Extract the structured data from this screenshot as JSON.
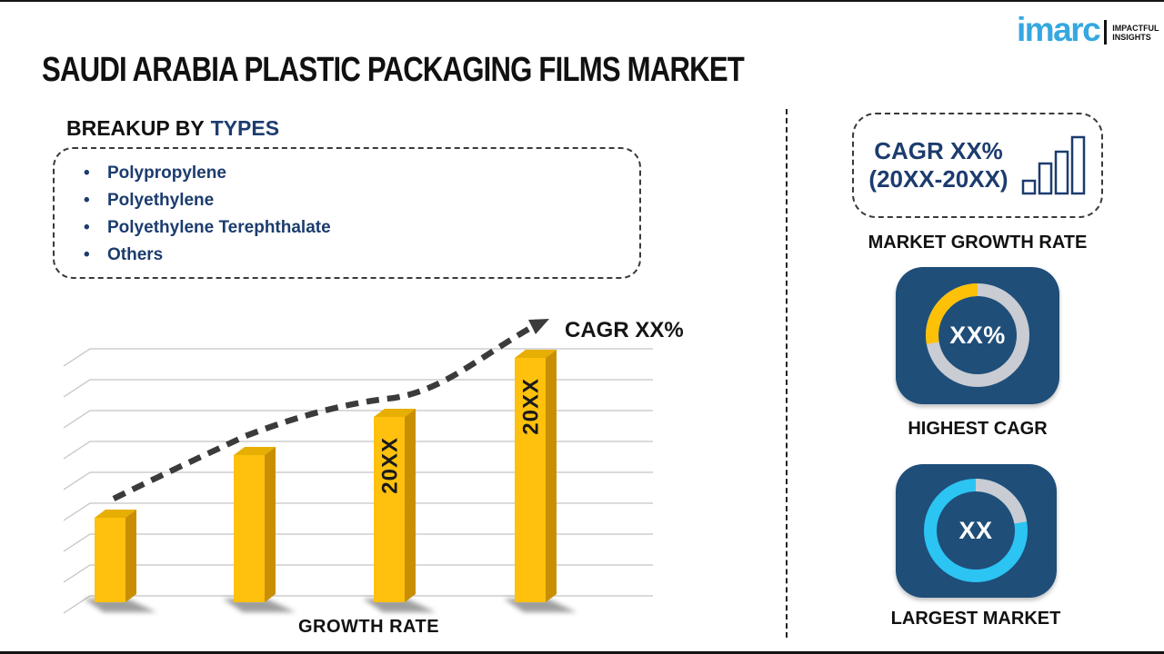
{
  "logo": {
    "brand": "imarc",
    "tagline_line1": "IMPACTFUL",
    "tagline_line2": "INSIGHTS",
    "brand_color": "#35a8e0"
  },
  "title": "SAUDI ARABIA PLASTIC PACKAGING FILMS MARKET",
  "breakup": {
    "heading_prefix": "BREAKUP BY",
    "heading_highlight": "TYPES",
    "items": [
      "Polypropylene",
      "Polyethylene",
      "Polyethylene Terephthalate",
      "Others"
    ]
  },
  "chart_data": {
    "type": "bar",
    "title": "",
    "xlabel": "GROWTH RATE",
    "ylabel": "",
    "categories": [
      "",
      "",
      "20XX",
      "20XX"
    ],
    "values": [
      27,
      47,
      59,
      78
    ],
    "value_note": "relative bar heights; axis values not shown (placeholder infographic)",
    "gridlines": 9,
    "trend_label": "CAGR XX%",
    "trend_style": "dashed rising arrow",
    "bar_color": "#ffc10e",
    "bar_color_top": "#e7ae03",
    "bar_color_side": "#c98f02",
    "trend_color": "#3b3b3b",
    "grid_color": "#c3c3c3",
    "legend": "off"
  },
  "right_panel": {
    "cagr_card": {
      "line1": "CAGR XX%",
      "line2": "(20XX-20XX)"
    },
    "market_growth_rate_label": "MARKET GROWTH RATE",
    "highest_cagr": {
      "value": "XX%",
      "label": "HIGHEST CAGR",
      "segment_color": "#ffc107",
      "ring_color": "#c9ccd2",
      "tile_color": "#1f4e79"
    },
    "largest_market": {
      "value": "XX",
      "label": "LARGEST MARKET",
      "ring_color": "#2bc4f3",
      "segment_color": "#c9ccd2",
      "tile_color": "#1f4e79"
    }
  },
  "colors": {
    "navy_text": "#1c3c6e"
  }
}
